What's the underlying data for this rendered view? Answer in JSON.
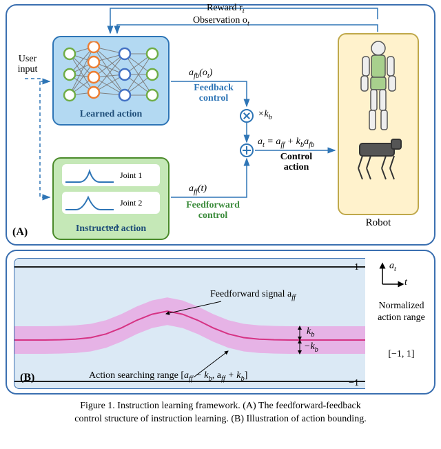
{
  "panelA": {
    "label": "(A)",
    "learned_title": "Learned action",
    "instructed_title": "Instructed action",
    "robot_label": "Robot",
    "user_input": "User input",
    "joint1": "Joint 1",
    "joint2": "Joint 2",
    "joint_more": "……",
    "reward_label": "Reward  r",
    "reward_sub": "t",
    "obs_label": "Observation  o",
    "obs_sub": "t",
    "afb_label": "a",
    "afb_sub": "fb",
    "afb_arg": "(o",
    "afb_arg_sub": "t",
    "afb_close": ")",
    "feedback_ctrl": "Feedback control",
    "kb_label": "×k",
    "kb_sub": "b",
    "aff_label": "a",
    "aff_sub": "ff",
    "aff_arg": "(t)",
    "feedforward_ctrl": "Feedforward control",
    "action_eq_a": "a",
    "action_eq_t": "t",
    "action_eq_eq": " = a",
    "action_eq_ff": "ff",
    "action_eq_plus": " + k",
    "action_eq_b": "b",
    "action_eq_afb": "a",
    "action_eq_fb": "fb",
    "control_action": "Control action",
    "nn_colors": {
      "layer1": "#70ad47",
      "layer2": "#ed7d31",
      "layer3": "#4472c4",
      "layer4": "#70ad47",
      "edge": "#7f7f7f"
    },
    "bell_color": "#2e75b6",
    "learned_bg": "#b3d9f2",
    "instructed_bg": "#c5e8b7",
    "robot_bg": "#fff2cc",
    "arrow_color": "#2e75b6",
    "dash_color": "#2e75b6"
  },
  "panelB": {
    "label": "(B)",
    "band_color": "#e6b3e6",
    "line_color": "#d63384",
    "bg_color": "#dbe9f5",
    "bound_line_color": "#000000",
    "feedforward_label": "Feedforward signal a",
    "feedforward_sub": "ff",
    "search_label": "Action searching range",
    "search_range_open": "[",
    "search_range_a1": "a",
    "search_range_ff1": "ff",
    "search_range_mkb": " − k",
    "search_range_b1": "b",
    "search_range_comma": ", a",
    "search_range_ff2": "ff",
    "search_range_pkb": " + k",
    "search_range_b2": "b",
    "search_range_close": "]",
    "kb_annot": "k",
    "kb_annot_sub": "b",
    "nkb_annot": "−k",
    "nkb_annot_sub": "b",
    "ytop": "1",
    "ybot": "−1",
    "at_label": "a",
    "at_sub": "t",
    "t_label": "t",
    "norm_range_title": "Normalized action range",
    "norm_range_val": "[−1, 1]",
    "curve_y": [
      0,
      0,
      0,
      0.01,
      0.03,
      0.08,
      0.2,
      0.4,
      0.65,
      0.85,
      0.95,
      0.85,
      0.65,
      0.4,
      0.2,
      0.08,
      0.03,
      0.01,
      0,
      0,
      0,
      0,
      0,
      0
    ],
    "curve_amplitude": 44,
    "curve_baseline": 118,
    "band_half": 20
  },
  "caption": {
    "line1": "Figure 1.   Instruction learning framework. (A) The feedforward-feedback",
    "line2": "control structure of instruction learning.   (B) Illustration of action bounding."
  }
}
